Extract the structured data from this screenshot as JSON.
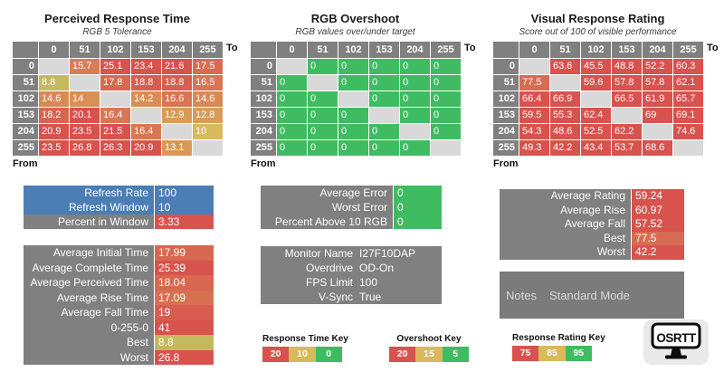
{
  "colors": {
    "header_gray": "#808080",
    "diagonal_gray": "#d9d9d9",
    "panel_gray": "#808080",
    "notes_gray": "#7b7b7b",
    "blue": "#4a7eb5",
    "red": "#d8524e",
    "tan": "#d8b95c",
    "green": "#3fbc62",
    "logo_bg": "#e9e9e9"
  },
  "scales": {
    "time": {
      "stops": [
        [
          0,
          "#3fbc62"
        ],
        [
          10,
          "#d8b95c"
        ],
        [
          20,
          "#d8524e"
        ]
      ]
    },
    "overshoot": {
      "stops": [
        [
          5,
          "#3fbc62"
        ],
        [
          15,
          "#d8b95c"
        ],
        [
          20,
          "#d8524e"
        ]
      ]
    },
    "rating": {
      "stops": [
        [
          75,
          "#d8524e"
        ],
        [
          85,
          "#d8b95c"
        ],
        [
          95,
          "#3fbc62"
        ]
      ]
    }
  },
  "chart_data": [
    {
      "type": "heatmap",
      "name": "perceived-response-time",
      "title": "Perceived Response Time",
      "subtitle": "RGB 5 Tolerance",
      "to_label": "To",
      "from_label": "From",
      "scale": "time",
      "categories_x": [
        "0",
        "51",
        "102",
        "153",
        "204",
        "255"
      ],
      "categories_y": [
        "0",
        "51",
        "102",
        "153",
        "204",
        "255"
      ],
      "values": [
        [
          null,
          15.7,
          25.1,
          23.4,
          21.6,
          17.5
        ],
        [
          8.8,
          null,
          17.8,
          18.8,
          18.8,
          16.5
        ],
        [
          14.6,
          14,
          null,
          14.2,
          16.6,
          14.6
        ],
        [
          18.2,
          20.1,
          16.4,
          null,
          12.9,
          12.8
        ],
        [
          20.9,
          23.5,
          21.5,
          16.4,
          null,
          10
        ],
        [
          23.5,
          26.8,
          26.3,
          20.9,
          13.1,
          null
        ]
      ]
    },
    {
      "type": "heatmap",
      "name": "rgb-overshoot",
      "title": "RGB Overshoot",
      "subtitle": "RGB values over/under target",
      "to_label": "To",
      "from_label": "From",
      "scale": "overshoot",
      "categories_x": [
        "0",
        "51",
        "102",
        "153",
        "204",
        "255"
      ],
      "categories_y": [
        "0",
        "51",
        "102",
        "153",
        "204",
        "255"
      ],
      "values": [
        [
          null,
          0,
          0,
          0,
          0,
          0
        ],
        [
          0,
          null,
          0,
          0,
          0,
          0
        ],
        [
          0,
          0,
          null,
          0,
          0,
          0
        ],
        [
          0,
          0,
          0,
          null,
          0,
          0
        ],
        [
          0,
          0,
          0,
          0,
          null,
          0
        ],
        [
          0,
          0,
          0,
          0,
          0,
          null
        ]
      ]
    },
    {
      "type": "heatmap",
      "name": "visual-response-rating",
      "title": "Visual Response Rating",
      "subtitle": "Score out of 100 of visible performance",
      "to_label": "To",
      "from_label": "From",
      "scale": "rating",
      "categories_x": [
        "0",
        "51",
        "102",
        "153",
        "204",
        "255"
      ],
      "categories_y": [
        "0",
        "51",
        "102",
        "153",
        "204",
        "255"
      ],
      "values": [
        [
          null,
          63.6,
          45.5,
          48.8,
          52.2,
          60.3
        ],
        [
          77.5,
          null,
          59.6,
          57.8,
          57.8,
          62.1
        ],
        [
          66.4,
          66.9,
          null,
          66.5,
          61.9,
          65.7
        ],
        [
          59.5,
          55.3,
          62.4,
          null,
          69,
          69.1
        ],
        [
          54.3,
          48.6,
          52.5,
          62.2,
          null,
          74.6
        ],
        [
          49.3,
          42.2,
          43.4,
          53.7,
          68.6,
          null
        ]
      ]
    }
  ],
  "panels": {
    "refresh": {
      "rows": [
        {
          "label": "Refresh Rate",
          "value": "100",
          "label_bg": "#4a7eb5",
          "value_bg": "#4a7eb5"
        },
        {
          "label": "Refresh Window",
          "value": "10",
          "label_bg": "#4a7eb5",
          "value_bg": "#4a7eb5"
        },
        {
          "label": "Percent in Window",
          "value": "3.33",
          "label_bg": "#808080",
          "value_bg": "#d8524e"
        }
      ]
    },
    "stats": {
      "scale": "time",
      "rows": [
        {
          "label": "Average Initial Time",
          "value": "17.99"
        },
        {
          "label": "Average Complete Time",
          "value": "25.39"
        },
        {
          "label": "Average Perceived Time",
          "value": "18.04"
        },
        {
          "label": "Average Rise Time",
          "value": "17.09"
        },
        {
          "label": "Average Fall Time",
          "value": "19"
        },
        {
          "label": "0-255-0",
          "value": "41"
        },
        {
          "label": "Best",
          "value": "8.8"
        },
        {
          "label": "Worst",
          "value": "26.8"
        }
      ]
    },
    "error": {
      "scale": "overshoot",
      "rows": [
        {
          "label": "Average Error",
          "value": "0"
        },
        {
          "label": "Worst Error",
          "value": "0"
        },
        {
          "label": "Percent Above 10 RGB",
          "value": "0"
        }
      ]
    },
    "monitor": {
      "rows": [
        {
          "label": "Monitor Name",
          "value": "I27F10DAP"
        },
        {
          "label": "Overdrive",
          "value": "OD-On"
        },
        {
          "label": "FPS Limit",
          "value": "100"
        },
        {
          "label": "V-Sync",
          "value": "True"
        }
      ]
    },
    "rating_summary": {
      "scale": "rating",
      "rows": [
        {
          "label": "Average Rating",
          "value": "59.24"
        },
        {
          "label": "Average Rise",
          "value": "60.97"
        },
        {
          "label": "Average Fall",
          "value": "57.52"
        },
        {
          "label": "Best",
          "value": "77.5"
        },
        {
          "label": "Worst",
          "value": "42.2"
        }
      ]
    },
    "notes": {
      "label": "Notes",
      "value": "Standard Mode"
    }
  },
  "keys": [
    {
      "title": "Response Time Key",
      "segments": [
        {
          "label": "20",
          "color": "#d8524e"
        },
        {
          "label": "10",
          "color": "#d8b95c"
        },
        {
          "label": "0",
          "color": "#3fbc62"
        }
      ]
    },
    {
      "title": "Overshoot Key",
      "segments": [
        {
          "label": "20",
          "color": "#d8524e"
        },
        {
          "label": "15",
          "color": "#d8b95c"
        },
        {
          "label": "5",
          "color": "#3fbc62"
        }
      ]
    },
    {
      "title": "Response Rating Key",
      "segments": [
        {
          "label": "75",
          "color": "#d8524e"
        },
        {
          "label": "85",
          "color": "#d8b95c"
        },
        {
          "label": "95",
          "color": "#3fbc62"
        }
      ]
    }
  ],
  "logo": {
    "text": "OSRTT"
  }
}
